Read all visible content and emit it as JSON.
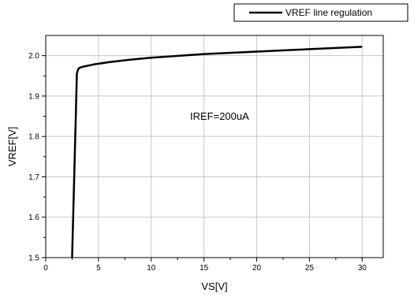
{
  "chart_data": {
    "type": "line",
    "title": "",
    "xlabel": "VS[V]",
    "ylabel": "VREF[V]",
    "xlim": [
      0,
      32
    ],
    "ylim": [
      1.5,
      2.05
    ],
    "grid": true,
    "legend_position": "top-right",
    "x_ticks": [
      0,
      5,
      10,
      15,
      20,
      25,
      30
    ],
    "y_ticks": [
      1.5,
      1.6,
      1.7,
      1.8,
      1.9,
      2.0
    ],
    "x_tick_labels": [
      "0",
      "5",
      "10",
      "15",
      "20",
      "25",
      "30"
    ],
    "y_tick_labels": [
      "1.5",
      "1.6",
      "1.7",
      "1.8",
      "1.9",
      "2.0"
    ],
    "annotation": "IREF=200uA",
    "series": [
      {
        "name": "VREF line regulation",
        "color": "#000000",
        "x": [
          2.5,
          2.7,
          2.85,
          2.95,
          3.05,
          3.2,
          3.6,
          4.5,
          6,
          8,
          10,
          15,
          20,
          25,
          30
        ],
        "y": [
          1.5,
          1.7,
          1.85,
          1.955,
          1.965,
          1.97,
          1.973,
          1.978,
          1.984,
          1.99,
          1.995,
          2.004,
          2.01,
          2.016,
          2.022
        ]
      }
    ]
  }
}
